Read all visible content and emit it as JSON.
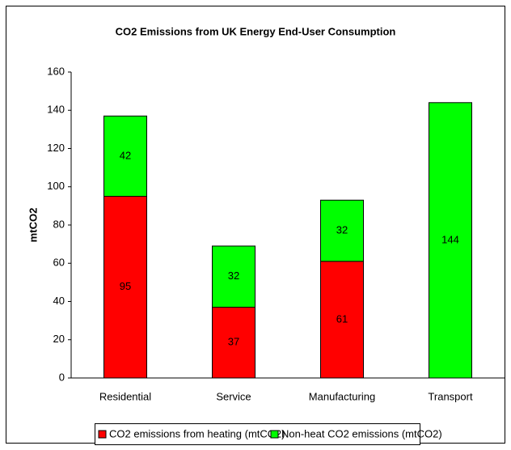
{
  "chart_data": {
    "type": "stacked_bar",
    "title": "CO2 Emissions from UK Energy End-User Consumption",
    "y_label": "mtCO2",
    "categories": [
      "Residential",
      "Service",
      "Manufacturing",
      "Transport"
    ],
    "series": [
      {
        "name": "CO2 emissions from heating (mtCO2)",
        "color": "#ff0000",
        "values": [
          95,
          37,
          61,
          null
        ]
      },
      {
        "name": "Non-heat CO2 emissions (mtCO2)",
        "color": "#00ff00",
        "values": [
          42,
          32,
          32,
          144
        ]
      }
    ],
    "ylim": [
      0,
      160
    ],
    "yticks": [
      0,
      20,
      40,
      60,
      80,
      100,
      120,
      140,
      160
    ],
    "grid": false,
    "legend": "bottom"
  }
}
